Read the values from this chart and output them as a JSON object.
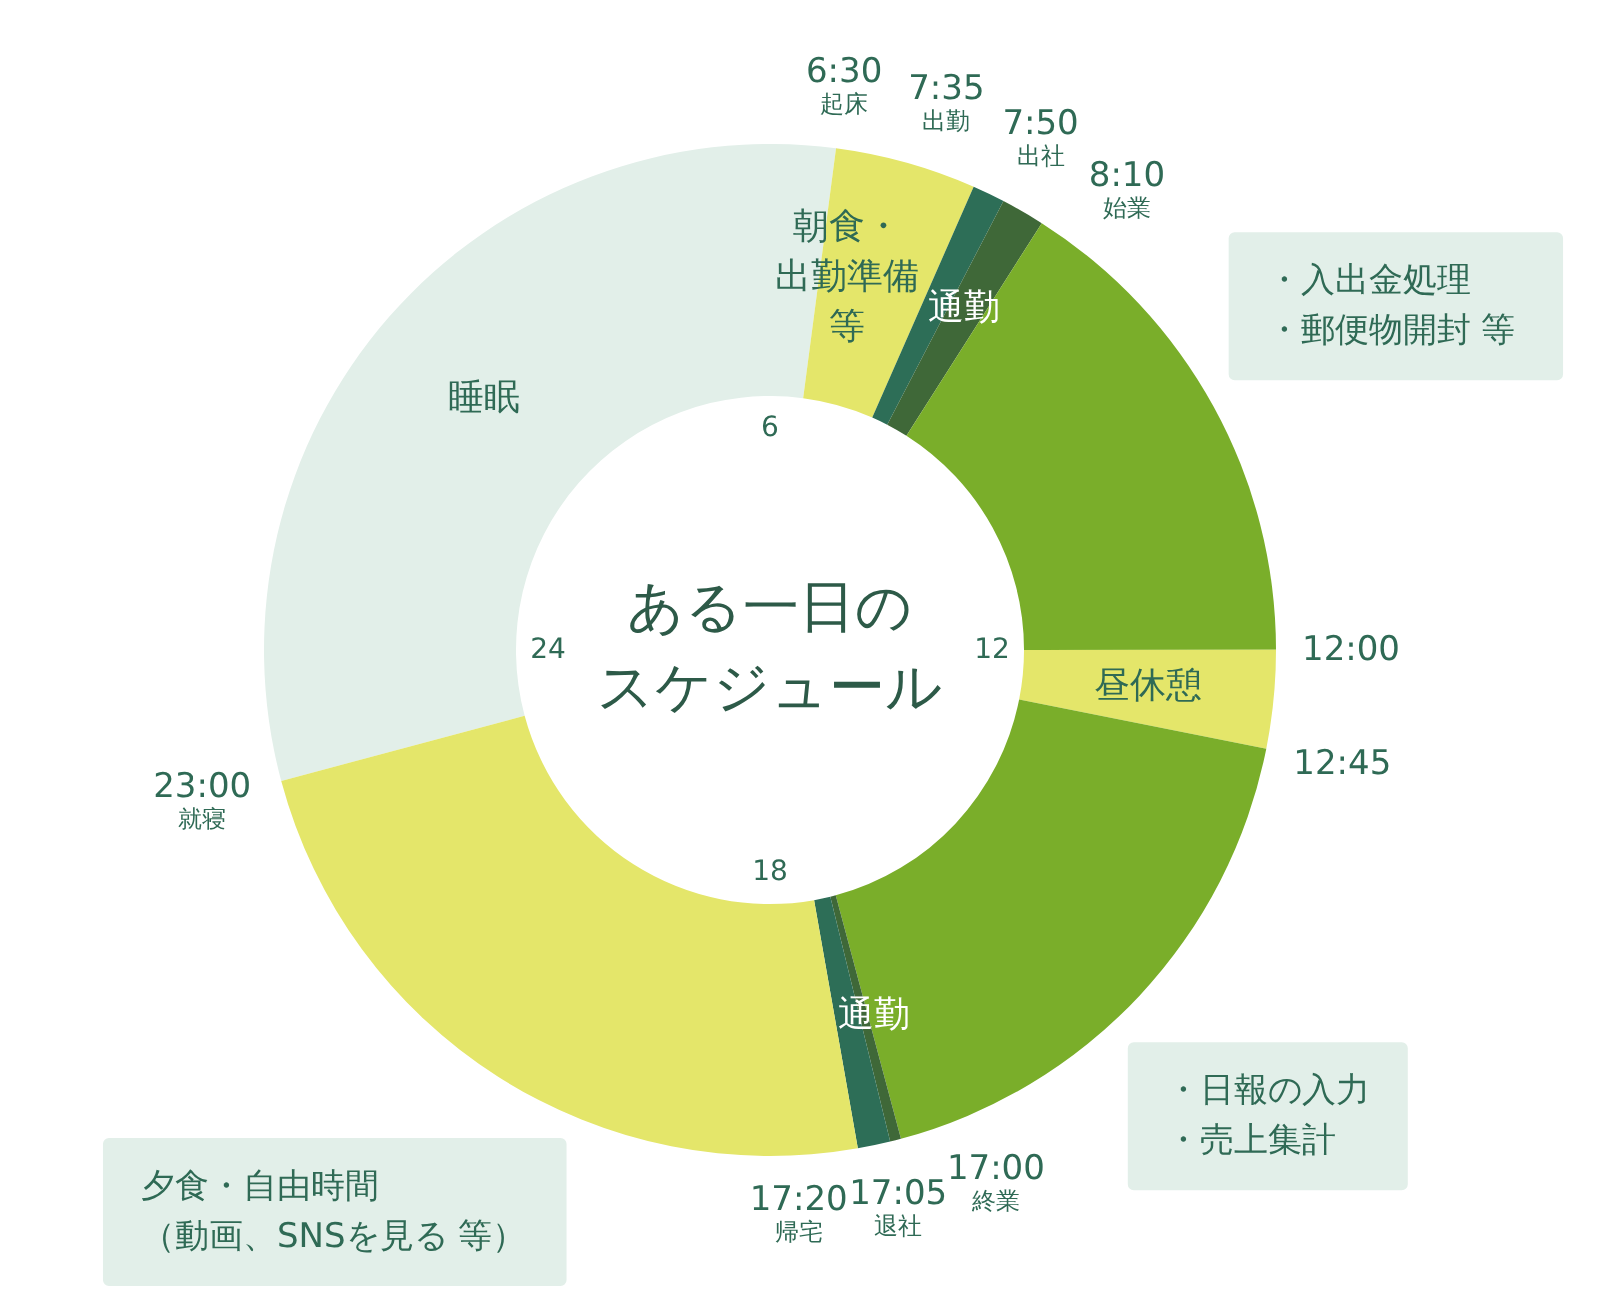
{
  "chart_data": {
    "type": "donut",
    "title": "ある一日のスケジュール",
    "categories": [
      "睡眠",
      "朝食・出勤準備等",
      "通勤",
      null,
      "・入出金処理・郵便物開封 等",
      "昼休憩",
      "・日報の入力・売上集計",
      null,
      "通勤",
      "夕食・自由時間（動画、SNSを見る 等）"
    ],
    "values": [
      31.25,
      4.51,
      1.04,
      1.39,
      15.97,
      3.13,
      17.71,
      0.35,
      1.04,
      23.61
    ],
    "colors": [
      "#e2efe9",
      "#e4e66a",
      "#2d6e57",
      "#3f6838",
      "#7aae2a",
      "#e4e66a",
      "#7aae2a",
      "#3f6838",
      "#2d6e57",
      "#e4e66a"
    ],
    "annotations": [
      "23:00\n就寝",
      "6:30\n起床",
      "7:35\n出勤",
      "7:50\n出社",
      "8:10\n始業",
      "12:00",
      "12:45",
      "17:00\n終業",
      "17:05\n退社",
      "17:20\n帰宅",
      "6",
      "12",
      "18",
      "24"
    ]
  }
}
